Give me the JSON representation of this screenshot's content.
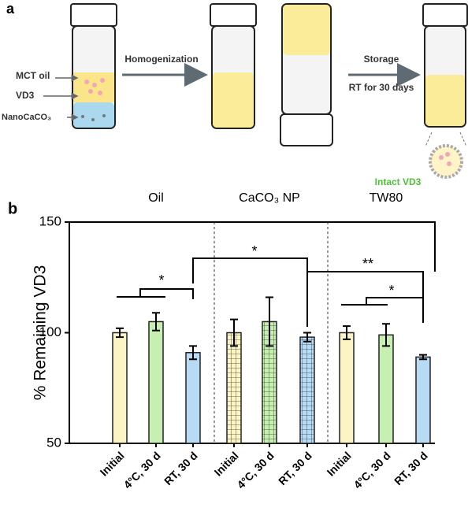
{
  "panel_a": {
    "label": "a",
    "labels": [
      "MCT oil",
      "VD3",
      "NanoCaCO₃"
    ],
    "step1": "Homogenization",
    "step2": "Storage",
    "step2_condition": "RT for 30 days",
    "result": "Intact VD3"
  },
  "panel_b_label": "b",
  "chart_data": {
    "type": "bar",
    "groups": [
      "Oil",
      "CaCO₃ NP",
      "TW80"
    ],
    "categories": [
      "Initial",
      "4°C, 30 d",
      "RT, 30 d",
      "Initial",
      "4°C, 30 d",
      "RT, 30 d",
      "Initial",
      "4°C, 30 d",
      "RT, 30 d"
    ],
    "values": [
      100,
      105,
      91,
      100,
      105,
      98,
      100,
      99,
      89
    ],
    "errors": [
      2,
      4,
      3,
      6,
      11,
      2,
      3,
      5,
      1
    ],
    "colors": [
      "#fcf4c4",
      "#c8efb2",
      "#b7dbf4",
      "#fcf4c4",
      "#c8efb2",
      "#b7dbf4",
      "#fcf4c4",
      "#c8efb2",
      "#b7dbf4"
    ],
    "ylabel": "% Remaining VD3",
    "ylim": [
      50,
      150
    ],
    "yticks": [
      50,
      100,
      150
    ],
    "annotations": [
      "*",
      "*",
      "**",
      "*"
    ]
  }
}
